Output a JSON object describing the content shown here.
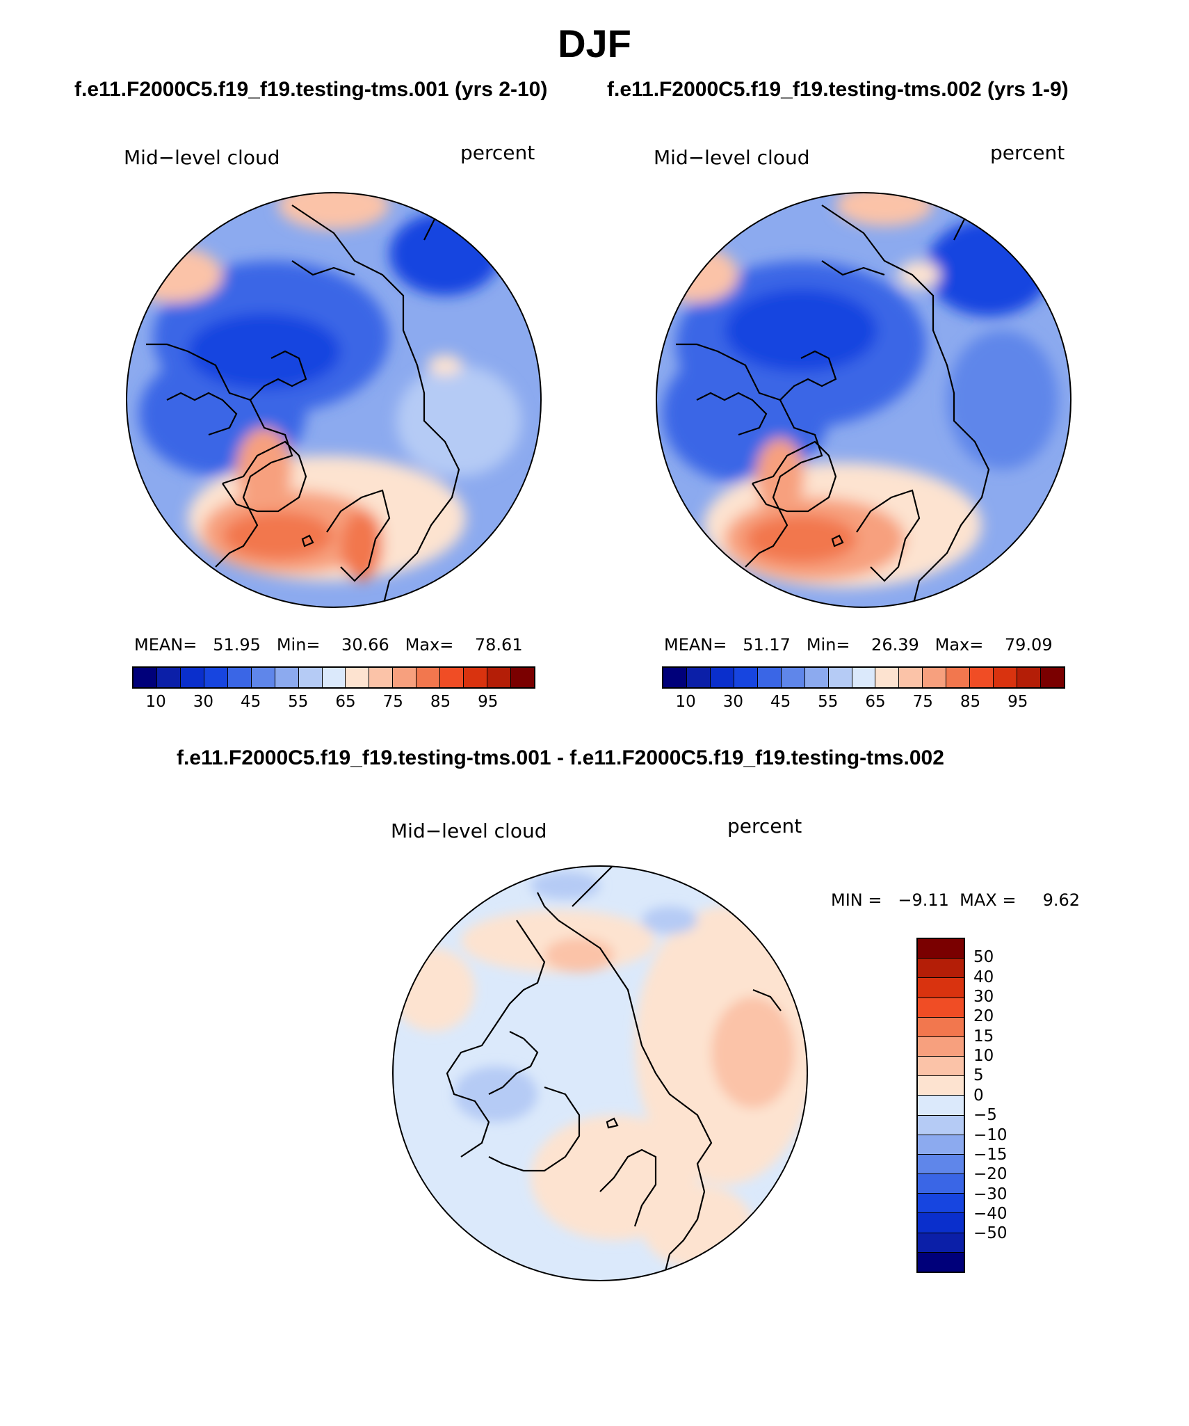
{
  "title": "DJF",
  "case_titles": {
    "left": "f.e11.F2000C5.f19_f19.testing-tms.001 (yrs 2-10)",
    "right": "f.e11.F2000C5.f19_f19.testing-tms.002 (yrs 1-9)",
    "diff": "f.e11.F2000C5.f19_f19.testing-tms.001 - f.e11.F2000C5.f19_f19.testing-tms.002"
  },
  "panels": {
    "left": {
      "variable": "Mid−level cloud",
      "units": "percent",
      "stats": "MEAN=   51.95   Min=    30.66   Max=    78.61"
    },
    "right": {
      "variable": "Mid−level cloud",
      "units": "percent",
      "stats": "MEAN=   51.17   Min=    26.39   Max=    79.09"
    },
    "diff": {
      "variable": "Mid−level cloud",
      "units": "percent",
      "stats": "MIN =   −9.11  MAX =     9.62"
    }
  },
  "colorbars": {
    "abs": {
      "colors": [
        "#00007a",
        "#0b1fa8",
        "#0a2fcc",
        "#1745e0",
        "#3a66e6",
        "#5f86ea",
        "#8caaef",
        "#b5cbf5",
        "#dbe9fb",
        "#fde3d0",
        "#fbc3a8",
        "#f7a07e",
        "#f2774e",
        "#f04d25",
        "#d9330f",
        "#b41e07",
        "#7a0000"
      ],
      "labels": [
        "10",
        "30",
        "45",
        "55",
        "65",
        "75",
        "85",
        "95"
      ]
    },
    "diff": {
      "colors": [
        "#7a0000",
        "#b41e07",
        "#d9330f",
        "#f04d25",
        "#f2774e",
        "#f7a07e",
        "#fbc3a8",
        "#fde3d0",
        "#dbe9fb",
        "#b5cbf5",
        "#8caaef",
        "#5f86ea",
        "#3a66e6",
        "#1745e0",
        "#0a2fcc",
        "#0b1fa8",
        "#00007a"
      ],
      "labels": [
        "50",
        "40",
        "30",
        "20",
        "15",
        "10",
        "5",
        "0",
        "−5",
        "−10",
        "−15",
        "−20",
        "−30",
        "−40",
        "−50"
      ]
    }
  },
  "map_colors": {
    "deep_blue": "#1745e0",
    "blue": "#3a66e6",
    "mid_blue": "#5f86ea",
    "light_blue": "#8caaef",
    "pale_blue": "#b5cbf5",
    "paler_blue": "#dbe9fb",
    "peach": "#fde3d0",
    "salmon": "#fbc3a8",
    "orange": "#f7a07e",
    "red_orange": "#f2774e"
  }
}
